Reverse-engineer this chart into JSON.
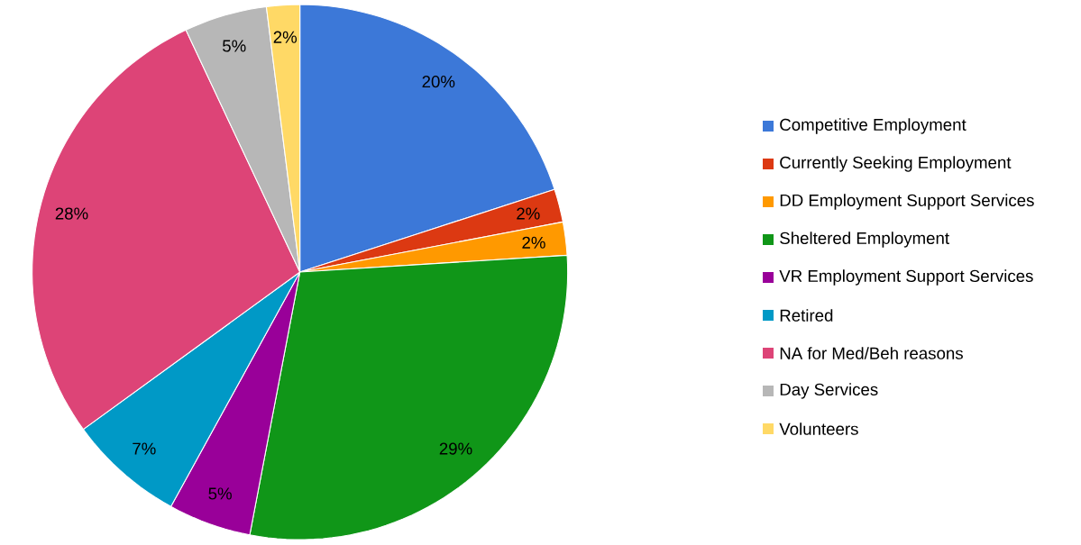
{
  "chart_data": {
    "type": "pie",
    "categories": [
      "Competitive Employment",
      "Currently Seeking Employment",
      "DD Employment Support Services",
      "Sheltered Employment",
      "VR Employment Support Services",
      "Retired",
      "NA for Med/Beh reasons",
      "Day Services",
      "Volunteers"
    ],
    "values": [
      20,
      2,
      2,
      29,
      5,
      7,
      28,
      5,
      2
    ],
    "value_labels": [
      "20%",
      "2%",
      "2%",
      "29%",
      "5%",
      "7%",
      "28%",
      "5%",
      "2%"
    ],
    "colors": [
      "#3c78d8",
      "#dc3912",
      "#ff9900",
      "#109618",
      "#990099",
      "#0099c6",
      "#dd4477",
      "#b7b7b7",
      "#ffd966"
    ],
    "legend": "right"
  }
}
